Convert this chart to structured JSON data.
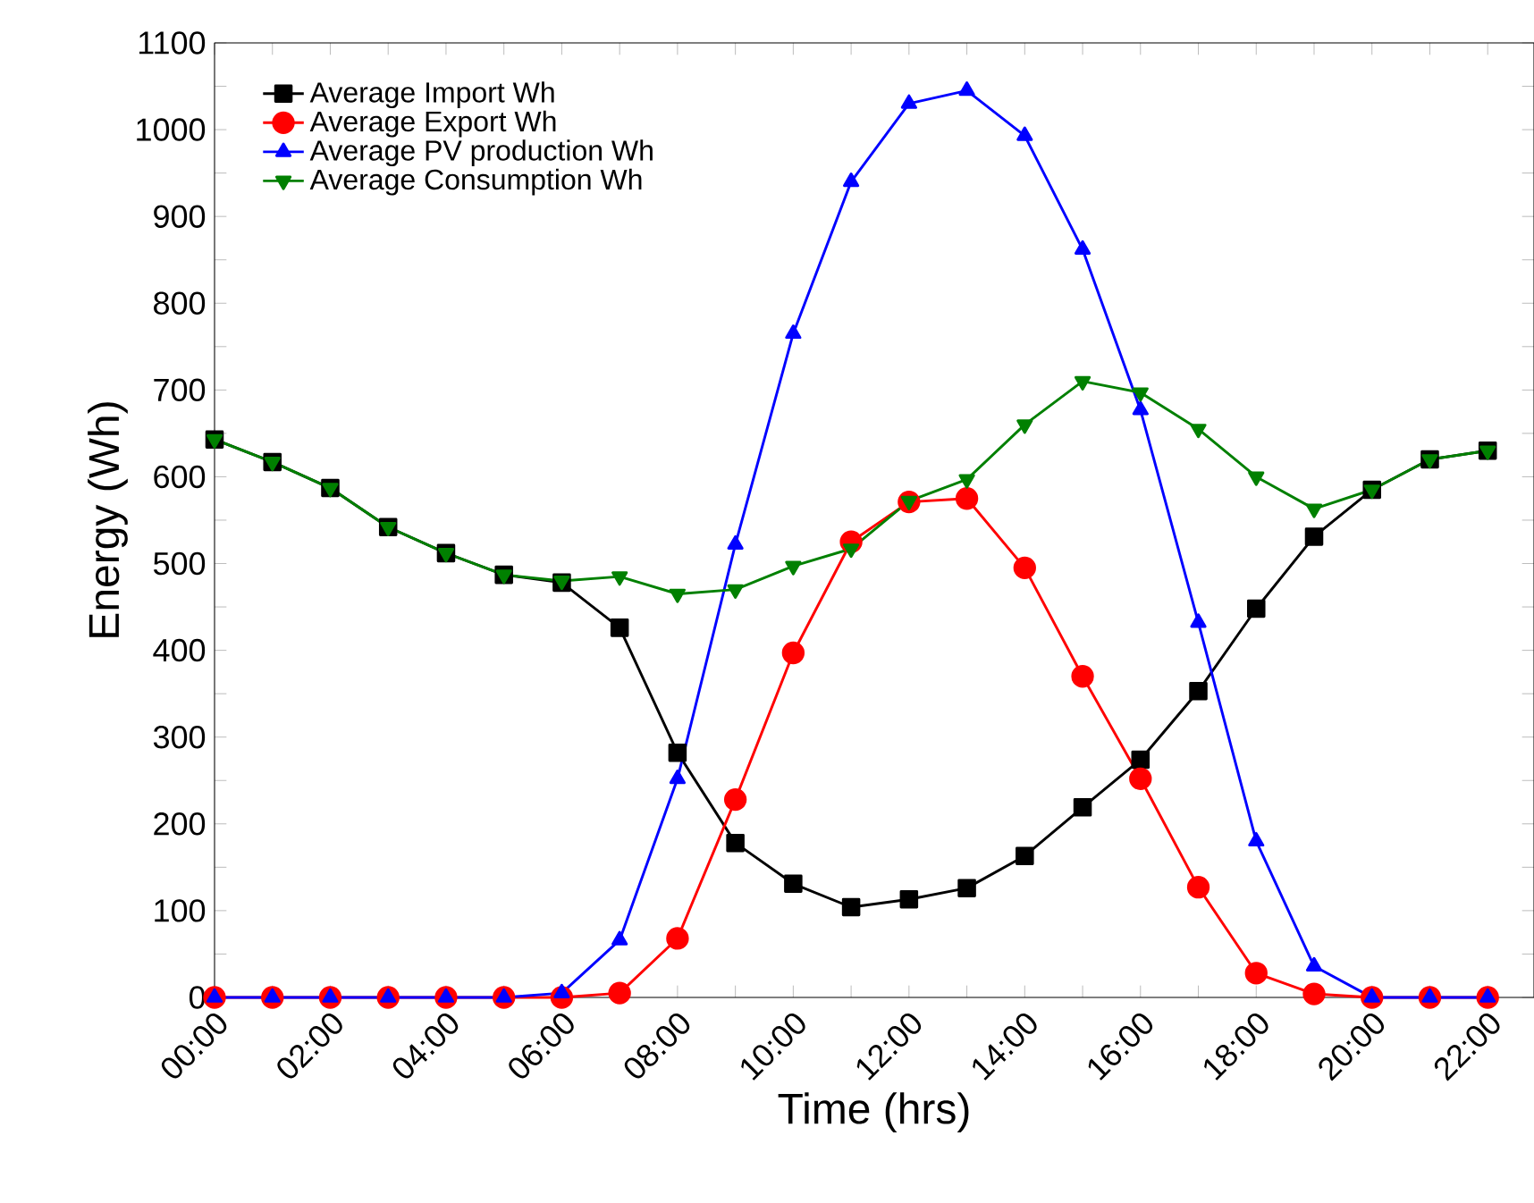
{
  "chart_data": {
    "type": "line",
    "xlabel": "Time (hrs)",
    "ylabel": "Energy (Wh)",
    "x": [
      0,
      1,
      2,
      3,
      4,
      5,
      6,
      7,
      8,
      9,
      10,
      11,
      12,
      13,
      14,
      15,
      16,
      17,
      18,
      19,
      20,
      21,
      22
    ],
    "series": [
      {
        "name": "Average Import Wh",
        "color": "#000000",
        "marker": "square",
        "values": [
          643,
          617,
          587,
          542,
          512,
          487,
          478,
          426,
          282,
          178,
          131,
          104,
          113,
          126,
          163,
          219,
          274,
          353,
          448,
          531,
          585,
          620,
          630
        ]
      },
      {
        "name": "Average Export Wh",
        "color": "#ff0000",
        "marker": "circle",
        "values": [
          0,
          0,
          0,
          0,
          0,
          0,
          0,
          5,
          68,
          228,
          397,
          525,
          571,
          575,
          495,
          370,
          252,
          127,
          28,
          4,
          0,
          0,
          0
        ]
      },
      {
        "name": "Average PV production Wh",
        "color": "#0000ff",
        "marker": "triangle",
        "values": [
          0,
          0,
          0,
          0,
          0,
          0,
          5,
          66,
          252,
          522,
          765,
          940,
          1030,
          1045,
          993,
          862,
          677,
          432,
          180,
          36,
          0,
          0,
          0
        ]
      },
      {
        "name": "Average Consumption Wh",
        "color": "#008000",
        "marker": "triangle-down",
        "values": [
          643,
          617,
          587,
          542,
          512,
          487,
          480,
          485,
          465,
          470,
          497,
          517,
          572,
          597,
          660,
          710,
          697,
          655,
          600,
          563,
          585,
          620,
          630
        ]
      }
    ],
    "xlim": [
      0,
      22.8
    ],
    "xticks": [
      {
        "value": 0,
        "label": "00:00"
      },
      {
        "value": 1,
        "label": null
      },
      {
        "value": 2,
        "label": "02:00"
      },
      {
        "value": 3,
        "label": null
      },
      {
        "value": 4,
        "label": "04:00"
      },
      {
        "value": 5,
        "label": null
      },
      {
        "value": 6,
        "label": "06:00"
      },
      {
        "value": 7,
        "label": null
      },
      {
        "value": 8,
        "label": "08:00"
      },
      {
        "value": 9,
        "label": null
      },
      {
        "value": 10,
        "label": "10:00"
      },
      {
        "value": 11,
        "label": null
      },
      {
        "value": 12,
        "label": "12:00"
      },
      {
        "value": 13,
        "label": null
      },
      {
        "value": 14,
        "label": "14:00"
      },
      {
        "value": 15,
        "label": null
      },
      {
        "value": 16,
        "label": "16:00"
      },
      {
        "value": 17,
        "label": null
      },
      {
        "value": 18,
        "label": "18:00"
      },
      {
        "value": 19,
        "label": null
      },
      {
        "value": 20,
        "label": "20:00"
      },
      {
        "value": 21,
        "label": null
      },
      {
        "value": 22,
        "label": "22:00"
      }
    ],
    "ylim": [
      0,
      1100
    ],
    "yticks": [
      0,
      {
        "value": 50,
        "label": null
      },
      100,
      {
        "value": 150,
        "label": null
      },
      200,
      {
        "value": 250,
        "label": null
      },
      300,
      {
        "value": 350,
        "label": null
      },
      400,
      {
        "value": 450,
        "label": null
      },
      500,
      {
        "value": 550,
        "label": null
      },
      600,
      {
        "value": 650,
        "label": null
      },
      700,
      {
        "value": 750,
        "label": null
      },
      800,
      {
        "value": 850,
        "label": null
      },
      900,
      {
        "value": 950,
        "label": null
      },
      1000,
      {
        "value": 1050,
        "label": null
      },
      1100
    ],
    "legend": "top left",
    "grid": false,
    "line_style": "solid"
  }
}
